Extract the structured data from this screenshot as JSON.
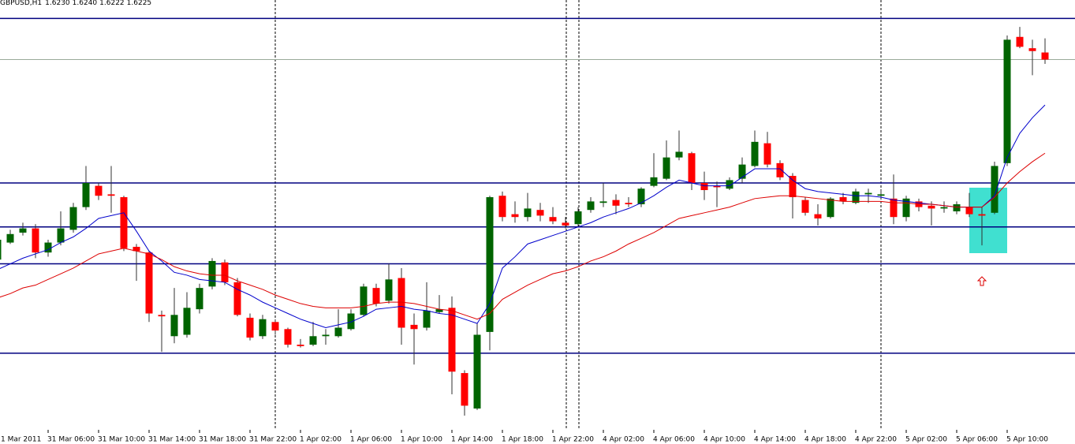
{
  "chart_data": {
    "type": "candlestick",
    "title": "GBPUSD,H1",
    "title_values": [
      "1.6230",
      "1.6240",
      "1.6222",
      "1.6225"
    ],
    "categories": [
      "1 Mar 2011",
      null,
      null,
      null,
      "31 Mar 06:00",
      null,
      null,
      null,
      "31 Mar 10:00",
      null,
      null,
      null,
      "31 Mar 14:00",
      null,
      null,
      null,
      "31 Mar 18:00",
      null,
      null,
      null,
      "31 Mar 22:00",
      null,
      null,
      null,
      "1 Apr 02:00",
      null,
      null,
      null,
      "1 Apr 06:00",
      null,
      null,
      null,
      "1 Apr 10:00",
      null,
      null,
      null,
      "1 Apr 14:00",
      null,
      null,
      null,
      "1 Apr 18:00",
      null,
      null,
      null,
      "1 Apr 22:00",
      null,
      null,
      null,
      "4 Apr 02:00",
      null,
      null,
      null,
      "4 Apr 06:00",
      null,
      null,
      null,
      "4 Apr 10:00",
      null,
      null,
      null,
      "4 Apr 14:00",
      null,
      null,
      null,
      "4 Apr 18:00",
      null,
      null,
      null,
      "4 Apr 22:00",
      null,
      null,
      null,
      "5 Apr 02:00",
      null,
      null,
      null,
      "5 Apr 06:00",
      null,
      null,
      null,
      "5 Apr 10:00",
      null,
      null,
      null
    ],
    "open": [
      1.6084,
      1.6096,
      1.6103,
      1.6106,
      1.6089,
      1.6096,
      1.6105,
      1.6121,
      1.6136,
      1.613,
      1.6128,
      1.6093,
      1.6089,
      1.6045,
      1.603,
      1.6031,
      1.6049,
      1.6065,
      1.6082,
      1.6068,
      1.6043,
      1.603,
      1.604,
      1.6035,
      1.6024,
      1.6024,
      1.603,
      1.603,
      1.6035,
      1.6045,
      1.6064,
      1.6055,
      1.6071,
      1.6038,
      1.6036,
      1.6047,
      1.605,
      1.6004,
      1.5979,
      1.6033,
      1.6129,
      1.6116,
      1.6114,
      1.6119,
      1.6114,
      1.611,
      1.6109,
      1.6119,
      1.6124,
      1.6126,
      1.6124,
      1.6123,
      1.6136,
      1.6141,
      1.6156,
      1.6159,
      1.6138,
      1.6136,
      1.6134,
      1.6141,
      1.615,
      1.6166,
      1.6152,
      1.6143,
      1.6126,
      1.6116,
      1.6114,
      1.6128,
      1.6124,
      1.613,
      1.6129,
      1.6127,
      1.6114,
      1.6125,
      1.6122,
      1.612,
      1.6118,
      1.6121,
      1.6116,
      1.6117,
      1.6152,
      1.6241,
      1.6233,
      1.623
    ],
    "high": [
      1.61,
      1.6105,
      1.611,
      1.6109,
      1.6098,
      1.6118,
      1.6124,
      1.615,
      1.6138,
      1.615,
      1.6129,
      1.6095,
      1.609,
      1.6048,
      1.6064,
      1.6061,
      1.6067,
      1.6085,
      1.6084,
      1.6071,
      1.6046,
      1.6045,
      1.6042,
      1.6036,
      1.6028,
      1.604,
      1.6035,
      1.6049,
      1.6049,
      1.6067,
      1.6067,
      1.6081,
      1.6078,
      1.6046,
      1.6068,
      1.6059,
      1.6058,
      1.6006,
      1.6039,
      1.6129,
      1.6132,
      1.6125,
      1.6131,
      1.6124,
      1.6121,
      1.6114,
      1.6121,
      1.6128,
      1.6138,
      1.613,
      1.6128,
      1.6135,
      1.6159,
      1.6168,
      1.6175,
      1.616,
      1.6146,
      1.6139,
      1.6142,
      1.6156,
      1.6175,
      1.6174,
      1.6154,
      1.6145,
      1.6128,
      1.6123,
      1.6128,
      1.6131,
      1.6134,
      1.6134,
      1.6133,
      1.6144,
      1.6129,
      1.6127,
      1.6125,
      1.6125,
      1.6125,
      1.6131,
      1.6121,
      1.6153,
      1.6242,
      1.6248,
      1.6239,
      1.624
    ],
    "low": [
      1.6081,
      1.6095,
      1.6101,
      1.6085,
      1.6086,
      1.6094,
      1.6103,
      1.6119,
      1.6126,
      1.6117,
      1.609,
      1.6069,
      1.604,
      1.6019,
      1.6025,
      1.6029,
      1.6046,
      1.6063,
      1.6066,
      1.6044,
      1.6027,
      1.6028,
      1.6031,
      1.6022,
      1.6022,
      1.6023,
      1.6024,
      1.6029,
      1.6034,
      1.6044,
      1.6051,
      1.6053,
      1.6024,
      1.601,
      1.6034,
      1.6046,
      1.5989,
      1.5974,
      1.5978,
      1.602,
      1.6111,
      1.611,
      1.6111,
      1.6111,
      1.6109,
      1.6106,
      1.6107,
      1.6117,
      1.6121,
      1.6116,
      1.6121,
      1.6121,
      1.6135,
      1.614,
      1.6154,
      1.6133,
      1.6126,
      1.6121,
      1.6133,
      1.6138,
      1.6149,
      1.6149,
      1.614,
      1.6113,
      1.6115,
      1.6108,
      1.6113,
      1.6123,
      1.6123,
      1.6124,
      1.6127,
      1.6109,
      1.6111,
      1.6118,
      1.6108,
      1.6117,
      1.6116,
      1.6114,
      1.6094,
      1.6116,
      1.615,
      1.6233,
      1.6214,
      1.6222
    ],
    "close": [
      1.6098,
      1.6102,
      1.6106,
      1.6089,
      1.6096,
      1.6106,
      1.6121,
      1.6138,
      1.6129,
      1.6129,
      1.6092,
      1.609,
      1.6046,
      1.6044,
      1.6045,
      1.605,
      1.6064,
      1.6083,
      1.6068,
      1.6045,
      1.6029,
      1.6042,
      1.6034,
      1.6024,
      1.6023,
      1.603,
      1.6031,
      1.6036,
      1.6046,
      1.6065,
      1.6053,
      1.607,
      1.6036,
      1.6035,
      1.6048,
      1.6049,
      1.6005,
      1.5981,
      1.6031,
      1.6128,
      1.6114,
      1.6114,
      1.612,
      1.6115,
      1.6111,
      1.6108,
      1.6118,
      1.6125,
      1.6125,
      1.6122,
      1.6123,
      1.6134,
      1.6142,
      1.6156,
      1.616,
      1.6138,
      1.6133,
      1.6135,
      1.614,
      1.6151,
      1.6167,
      1.6151,
      1.6142,
      1.6128,
      1.6117,
      1.6113,
      1.6127,
      1.6125,
      1.6132,
      1.6131,
      1.613,
      1.6114,
      1.6127,
      1.6121,
      1.612,
      1.6121,
      1.6123,
      1.6116,
      1.6115,
      1.615,
      1.6239,
      1.6234,
      1.6231,
      1.6225
    ],
    "lines": [
      {
        "color": "#0000cc",
        "values": [
          1.6077,
          1.6081,
          1.6085,
          1.6088,
          1.6091,
          1.6096,
          1.61,
          1.6106,
          1.6113,
          1.6115,
          1.6117,
          1.6104,
          1.609,
          1.6083,
          1.6075,
          1.6073,
          1.607,
          1.6069,
          1.6068,
          1.6063,
          1.6059,
          1.6054,
          1.605,
          1.6046,
          1.6042,
          1.6039,
          1.6036,
          1.6038,
          1.604,
          1.6044,
          1.6049,
          1.605,
          1.6051,
          1.6049,
          1.6048,
          1.6046,
          1.6045,
          1.6042,
          1.6039,
          1.6053,
          1.6078,
          1.6086,
          1.6095,
          1.6098,
          1.6101,
          1.6104,
          1.6107,
          1.611,
          1.6114,
          1.6117,
          1.612,
          1.6124,
          1.6129,
          1.6135,
          1.614,
          1.6138,
          1.6136,
          1.6136,
          1.6136,
          1.6142,
          1.6148,
          1.6148,
          1.6148,
          1.614,
          1.6134,
          1.6132,
          1.6131,
          1.613,
          1.6129,
          1.6129,
          1.6128,
          1.6126,
          1.6125,
          1.6124,
          1.6123,
          1.6122,
          1.6121,
          1.6121,
          1.6121,
          1.6129,
          1.6156,
          1.6173,
          1.6184,
          1.6193
        ]
      },
      {
        "color": "#dd0000",
        "values": [
          1.6057,
          1.606,
          1.6064,
          1.6066,
          1.607,
          1.6074,
          1.6078,
          1.6083,
          1.6088,
          1.609,
          1.6092,
          1.609,
          1.6088,
          1.6084,
          1.6079,
          1.6076,
          1.6074,
          1.6073,
          1.6073,
          1.6069,
          1.6066,
          1.6063,
          1.6059,
          1.6056,
          1.6053,
          1.6051,
          1.605,
          1.605,
          1.605,
          1.6051,
          1.6053,
          1.6054,
          1.6054,
          1.6053,
          1.6051,
          1.6049,
          1.6048,
          1.6045,
          1.6042,
          1.6046,
          1.6056,
          1.6061,
          1.6066,
          1.607,
          1.6074,
          1.6076,
          1.6079,
          1.6083,
          1.6086,
          1.609,
          1.6095,
          1.6099,
          1.6103,
          1.6108,
          1.6113,
          1.6115,
          1.6117,
          1.6119,
          1.6121,
          1.6124,
          1.6127,
          1.6128,
          1.6129,
          1.6129,
          1.6128,
          1.6127,
          1.6126,
          1.6125,
          1.6125,
          1.6125,
          1.6125,
          1.6124,
          1.6124,
          1.6123,
          1.6123,
          1.6122,
          1.6121,
          1.6121,
          1.6121,
          1.6128,
          1.6138,
          1.6146,
          1.6153,
          1.6159
        ]
      }
    ],
    "levels": [
      1.6254,
      1.6138,
      1.6107,
      1.6081,
      1.6018
    ],
    "level_color": "#000080",
    "up_color": "#006400",
    "down_color": "#ff0000",
    "doji_color": "#00dd00",
    "wick_color": "#303030",
    "bid_line_color": "#9aaa9a",
    "ylim": [
      1.5964,
      1.6267
    ],
    "grid": false
  }
}
